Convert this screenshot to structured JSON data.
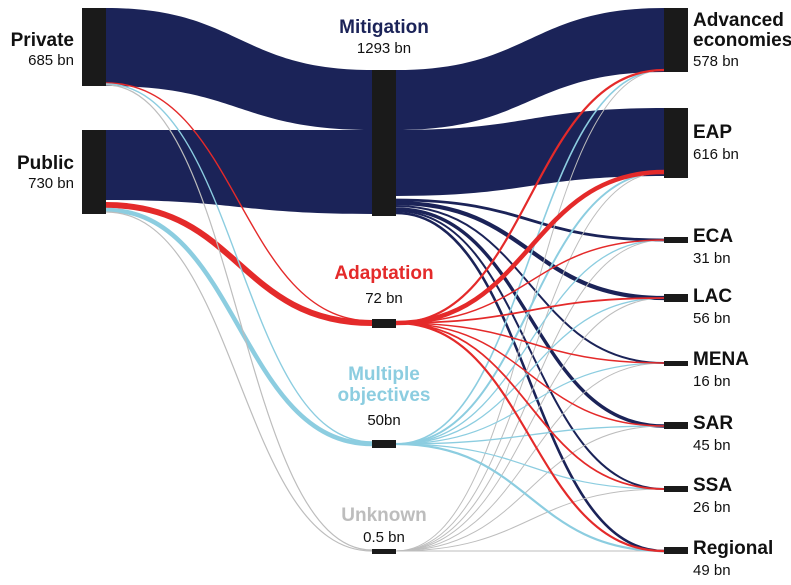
{
  "colors": {
    "mitigation": "#1b2358",
    "adaptation": "#e42a2a",
    "multiple": "#8ccde0",
    "unknown": "#bdbdbd",
    "node": "#1a1a1a"
  },
  "sources": [
    {
      "id": "private",
      "name": "Private",
      "value_label": "685 bn"
    },
    {
      "id": "public",
      "name": "Public",
      "value_label": "730 bn"
    }
  ],
  "objectives": [
    {
      "id": "mitigation",
      "name": "Mitigation",
      "value_label": "1293 bn"
    },
    {
      "id": "adaptation",
      "name": "Adaptation",
      "value_label": "72 bn"
    },
    {
      "id": "multiple",
      "name_line1": "Multiple",
      "name_line2": "objectives",
      "value_label": "50bn"
    },
    {
      "id": "unknown",
      "name": "Unknown",
      "value_label": "0.5 bn"
    }
  ],
  "regions": [
    {
      "id": "advanced",
      "name_line1": "Advanced",
      "name_line2": "economies",
      "value_label": "578 bn"
    },
    {
      "id": "eap",
      "name": "EAP",
      "value_label": "616 bn"
    },
    {
      "id": "eca",
      "name": "ECA",
      "value_label": "31 bn"
    },
    {
      "id": "lac",
      "name": "LAC",
      "value_label": "56 bn"
    },
    {
      "id": "mena",
      "name": "MENA",
      "value_label": "16 bn"
    },
    {
      "id": "sar",
      "name": "SAR",
      "value_label": "45 bn"
    },
    {
      "id": "ssa",
      "name": "SSA",
      "value_label": "26 bn"
    },
    {
      "id": "regional",
      "name": "Regional",
      "value_label": "49 bn"
    }
  ]
}
